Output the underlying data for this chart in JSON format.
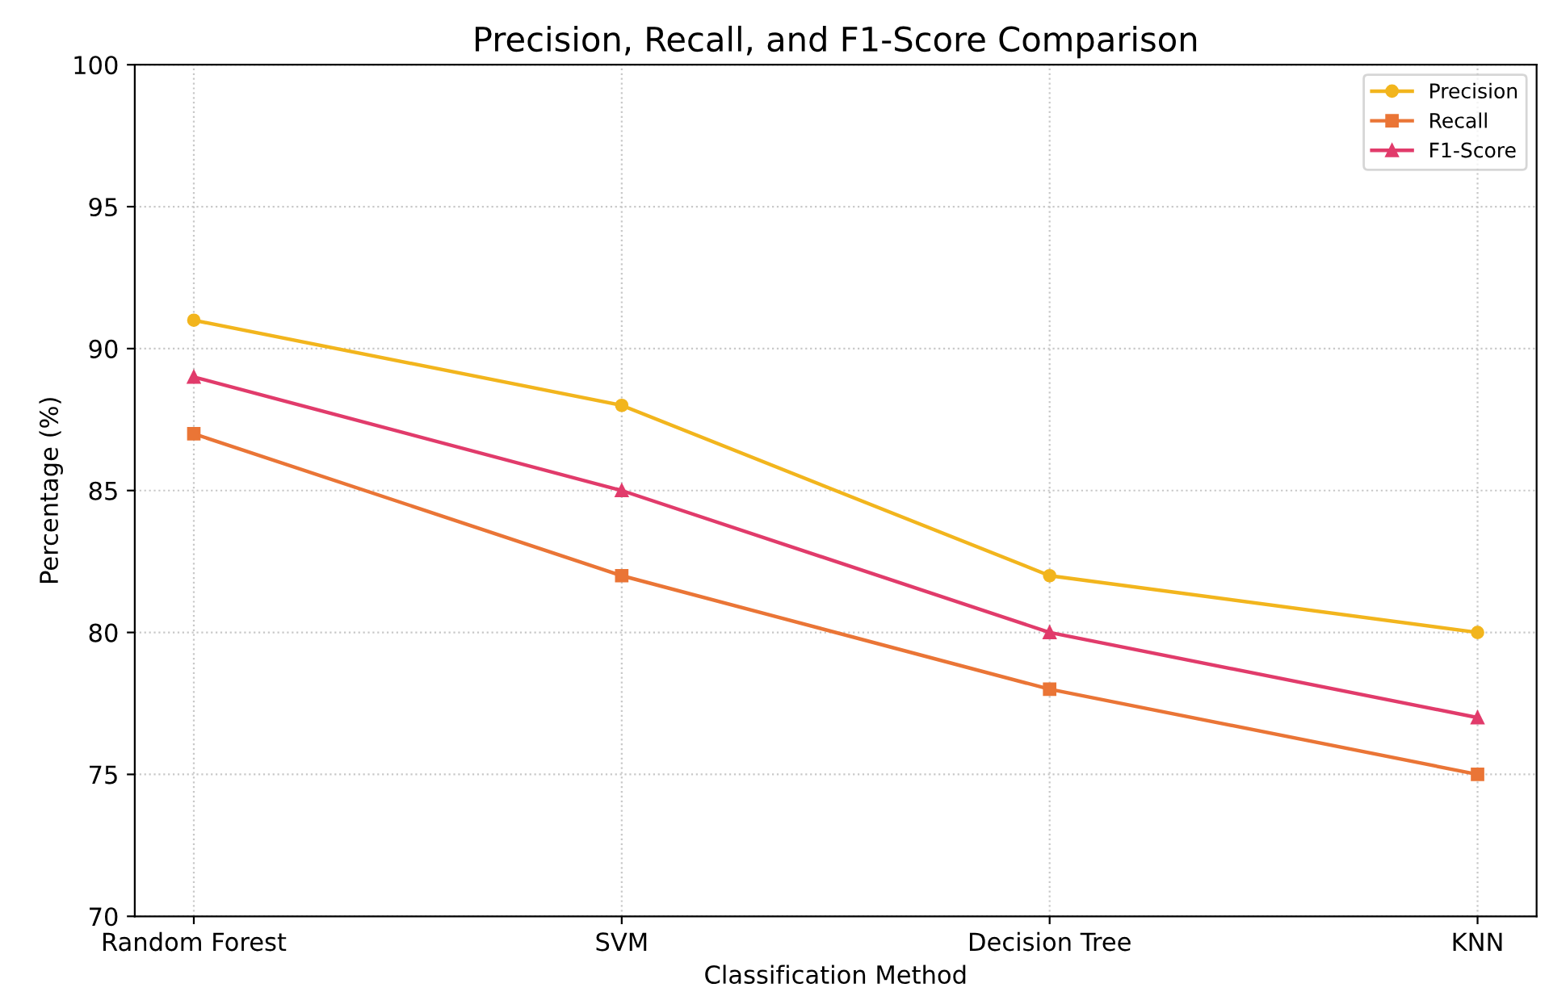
{
  "chart_data": {
    "type": "line",
    "title": "Precision, Recall, and F1-Score Comparison",
    "xlabel": "Classification Method",
    "ylabel": "Percentage (%)",
    "categories": [
      "Random Forest",
      "SVM",
      "Decision Tree",
      "KNN"
    ],
    "series": [
      {
        "name": "Precision",
        "color": "#f2b51d",
        "values": [
          91,
          88,
          82,
          80
        ],
        "marker": "circle"
      },
      {
        "name": "Recall",
        "color": "#ea7536",
        "values": [
          87,
          82,
          78,
          75
        ],
        "marker": "square"
      },
      {
        "name": "F1-Score",
        "color": "#e13b6b",
        "values": [
          89,
          85,
          80,
          77
        ],
        "marker": "triangle"
      }
    ],
    "ylim": [
      70,
      100
    ],
    "yticks": [
      70,
      75,
      80,
      85,
      90,
      95,
      100
    ],
    "grid": true,
    "legend": "top right",
    "line_style": "solid"
  }
}
